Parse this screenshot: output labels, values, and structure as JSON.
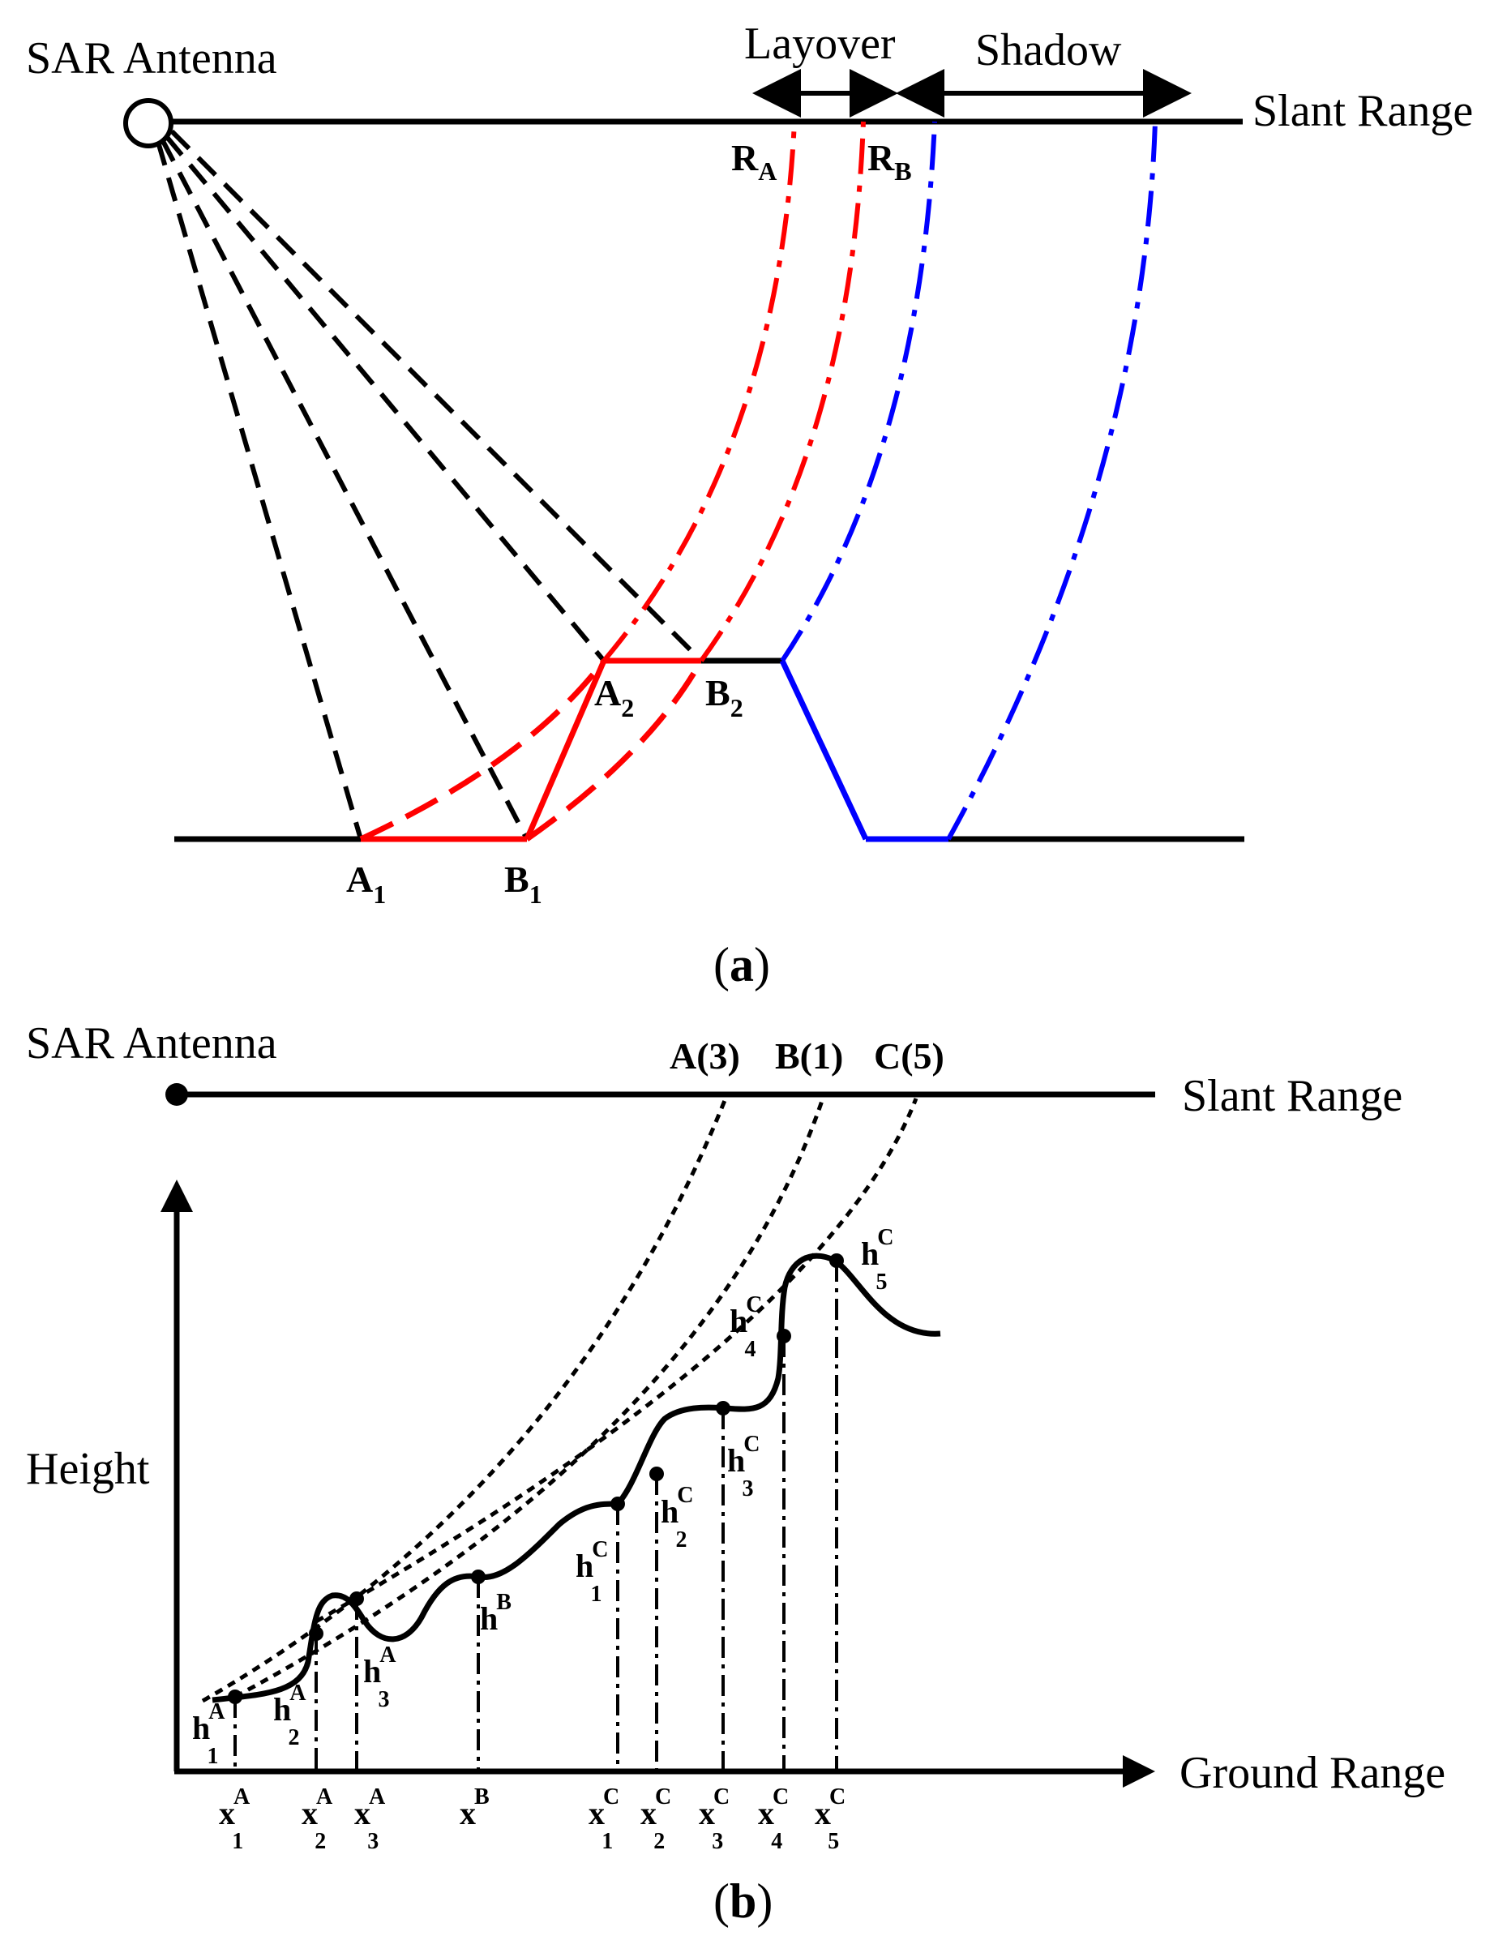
{
  "panel_a": {
    "caption_open": "(",
    "caption_letter": "a",
    "caption_close": ")",
    "antenna_label": "SAR Antenna",
    "slant_range_label": "Slant Range",
    "layover_label": "Layover",
    "shadow_label": "Shadow",
    "ra": {
      "base": "R",
      "sub": "A"
    },
    "rb": {
      "base": "R",
      "sub": "B"
    },
    "a1": {
      "base": "A",
      "sub": "1"
    },
    "b1": {
      "base": "B",
      "sub": "1"
    },
    "a2": {
      "base": "A",
      "sub": "2"
    },
    "b2": {
      "base": "B",
      "sub": "2"
    }
  },
  "panel_b": {
    "caption_open": "(",
    "caption_letter": "b",
    "caption_close": ")",
    "antenna_label": "SAR Antenna",
    "slant_range_label": "Slant Range",
    "height_label": "Height",
    "ground_range_label": "Ground Range",
    "slant_points": [
      "A(3)",
      "B(1)",
      "C(5)"
    ],
    "x_ticks": [
      {
        "base": "x",
        "sub": "1",
        "sup": "A"
      },
      {
        "base": "x",
        "sub": "2",
        "sup": "A"
      },
      {
        "base": "x",
        "sub": "3",
        "sup": "A"
      },
      {
        "base": "x",
        "sub": "",
        "sup": "B"
      },
      {
        "base": "x",
        "sub": "1",
        "sup": "C"
      },
      {
        "base": "x",
        "sub": "2",
        "sup": "C"
      },
      {
        "base": "x",
        "sub": "3",
        "sup": "C"
      },
      {
        "base": "x",
        "sub": "4",
        "sup": "C"
      },
      {
        "base": "x",
        "sub": "5",
        "sup": "C"
      }
    ],
    "h_labels": [
      {
        "base": "h",
        "sub": "1",
        "sup": "A"
      },
      {
        "base": "h",
        "sub": "2",
        "sup": "A"
      },
      {
        "base": "h",
        "sub": "3",
        "sup": "A"
      },
      {
        "base": "h",
        "sub": "",
        "sup": "B"
      },
      {
        "base": "h",
        "sub": "1",
        "sup": "C"
      },
      {
        "base": "h",
        "sub": "2",
        "sup": "C"
      },
      {
        "base": "h",
        "sub": "3",
        "sup": "C"
      },
      {
        "base": "h",
        "sub": "4",
        "sup": "C"
      },
      {
        "base": "h",
        "sub": "5",
        "sup": "C"
      }
    ]
  },
  "colors": {
    "layover": "#ff0000",
    "shadow": "#0000ff",
    "lines": "#000000"
  }
}
